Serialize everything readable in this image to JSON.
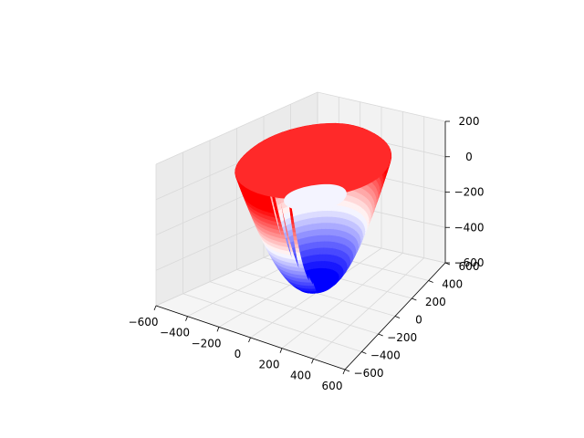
{
  "chart_data": {
    "type": "surface3d",
    "title": "",
    "xlabel": "",
    "ylabel": "",
    "zlabel": "",
    "grid": true,
    "colormap": "bwr",
    "xlim": [
      -600,
      600
    ],
    "ylim": [
      -600,
      600
    ],
    "zlim": [
      -600,
      200
    ],
    "x_ticks": [
      -600,
      -400,
      -200,
      0,
      200,
      400,
      600
    ],
    "x_tick_labels": [
      "−600",
      "−400",
      "−200",
      "0",
      "200",
      "400",
      "600"
    ],
    "y_ticks": [
      -600,
      -400,
      -200,
      0,
      200,
      400,
      600
    ],
    "y_tick_labels": [
      "−600",
      "−400",
      "−200",
      "0",
      "200",
      "400",
      "600"
    ],
    "z_ticks": [
      -600,
      -400,
      -200,
      0,
      200
    ],
    "z_tick_labels": [
      "−600",
      "−400",
      "−200",
      "0",
      "200"
    ],
    "surface": {
      "shape": "bowl",
      "rim_radius": 450,
      "rim_height": 150,
      "bottom_depth": -580,
      "inner_radius": 170,
      "inner_depth": -60
    }
  },
  "colors": {
    "pane_left": "#ebebeb",
    "pane_right": "#f2f2f2",
    "floor": "#f5f5f5",
    "high": "#ff0000",
    "mid": "#ffffff",
    "low": "#0000ff"
  }
}
